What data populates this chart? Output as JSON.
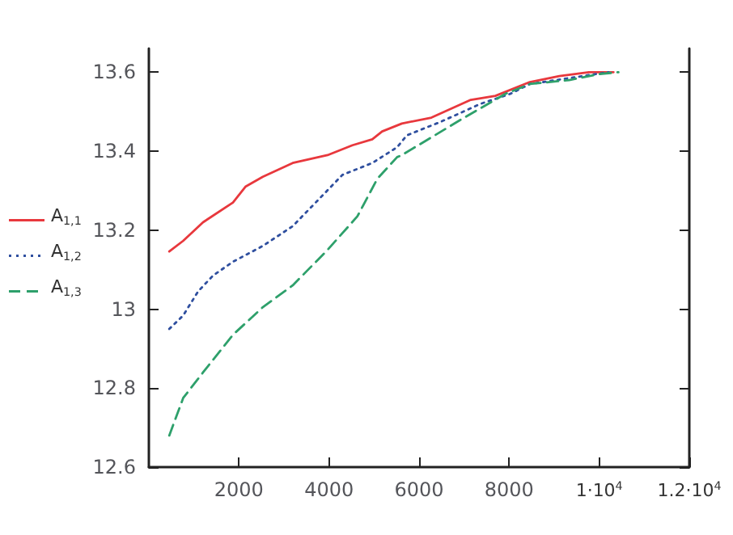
{
  "chart_data": {
    "type": "line",
    "xlim": [
      0,
      12000
    ],
    "xticks": [
      2000,
      4000,
      6000,
      8000,
      {
        "value": 10000,
        "label": "1·10$^{4}$"
      },
      {
        "value": 12000,
        "label": "1.2·10$^{4}$"
      }
    ],
    "ylim": [
      12.6,
      13.66
    ],
    "yticks": [
      12.6,
      12.8,
      13,
      13.2,
      13.4,
      13.6
    ],
    "grid": false,
    "legend": "left",
    "marker": "none",
    "series": [
      {
        "name": "A$_{1,1}$",
        "color": "#e8383d",
        "line_style": "solid",
        "x": [
          453,
          762,
          1204,
          1867,
          2144,
          2530,
          3193,
          3967,
          4519,
          4961,
          5180,
          5617,
          6273,
          7148,
          7694,
          8459,
          9115,
          9770,
          10317
        ],
        "values": [
          13.146,
          13.173,
          13.22,
          13.27,
          13.31,
          13.335,
          13.37,
          13.39,
          13.415,
          13.43,
          13.45,
          13.47,
          13.485,
          13.53,
          13.54,
          13.575,
          13.59,
          13.6,
          13.6
        ]
      },
      {
        "name": "A$_{1,2}$",
        "color": "#2f4f9f",
        "line_style": "dotted",
        "x": [
          453,
          762,
          1094,
          1425,
          1867,
          2530,
          3193,
          3746,
          4298,
          4961,
          5513,
          5727,
          6492,
          7366,
          8022,
          8459,
          9333,
          10208
        ],
        "values": [
          12.95,
          12.984,
          13.045,
          13.085,
          13.12,
          13.16,
          13.21,
          13.275,
          13.34,
          13.37,
          13.41,
          13.44,
          13.475,
          13.52,
          13.545,
          13.57,
          13.585,
          13.6
        ]
      },
      {
        "name": "A$_{1,3}$",
        "color": "#2ea06b",
        "line_style": "dashed",
        "x": [
          453,
          762,
          1204,
          1867,
          2530,
          3193,
          3967,
          4630,
          5072,
          5513,
          5617,
          6273,
          6929,
          7913,
          8459,
          9333,
          9989,
          10426
        ],
        "values": [
          12.68,
          12.775,
          12.84,
          12.935,
          13.005,
          13.06,
          13.15,
          13.235,
          13.33,
          13.385,
          13.39,
          13.435,
          13.48,
          13.545,
          13.57,
          13.58,
          13.595,
          13.6
        ]
      }
    ]
  }
}
